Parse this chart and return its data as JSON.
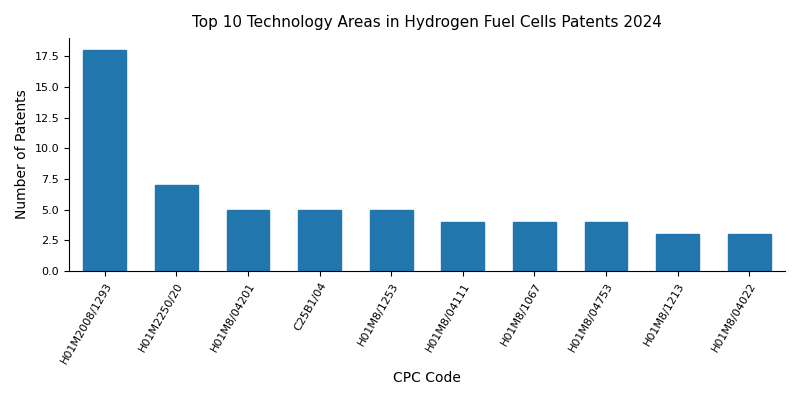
{
  "title": "Top 10 Technology Areas in Hydrogen Fuel Cells Patents 2024",
  "xlabel": "CPC Code",
  "ylabel": "Number of Patents",
  "categories": [
    "H01M2008/1293",
    "H01M2250/20",
    "H01M8/04201",
    "C25B1/04",
    "H01M8/1253",
    "H01M8/04111",
    "H01M8/1067",
    "H01M8/04753",
    "H01M8/1213",
    "H01M8/04022"
  ],
  "values": [
    18,
    7,
    5,
    5,
    5,
    4,
    4,
    4,
    3,
    3
  ],
  "bar_color": "#2176ae",
  "ylim": [
    0,
    19
  ],
  "yticks": [
    0.0,
    2.5,
    5.0,
    7.5,
    10.0,
    12.5,
    15.0,
    17.5
  ],
  "background_color": "#ffffff",
  "title_fontsize": 11,
  "label_fontsize": 10,
  "tick_fontsize": 8,
  "figure_width": 8.0,
  "figure_height": 4.0,
  "dpi": 100
}
